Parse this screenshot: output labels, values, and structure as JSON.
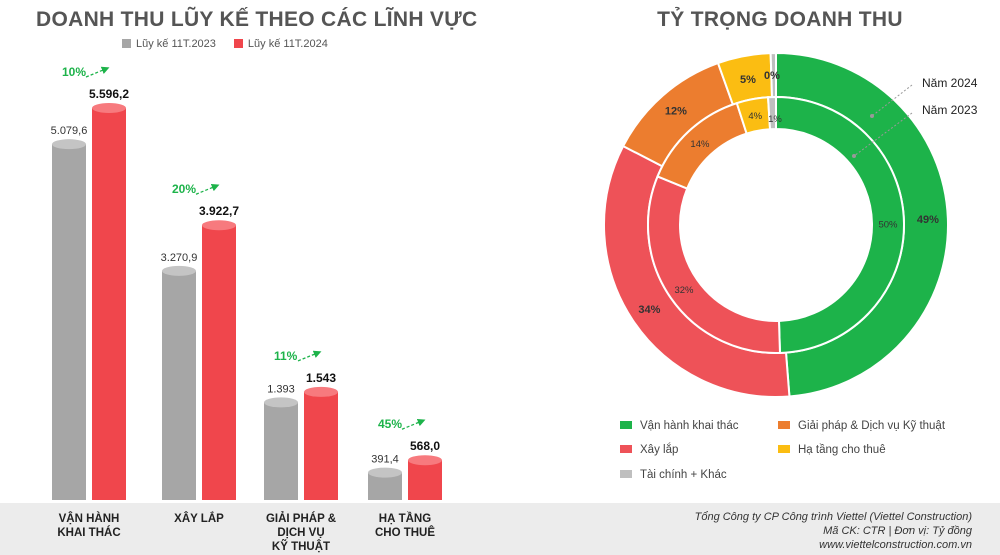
{
  "chart_data": [
    {
      "type": "bar",
      "title": "DOANH THU LŨY KẾ THEO CÁC LĨNH VỰC",
      "categories": [
        "VẬN HÀNH\nKHAI THÁC",
        "XÂY LẮP",
        "GIẢI PHÁP &\nDỊCH VỤ\nKỸ THUẬT",
        "HẠ TẦNG\nCHO THUÊ"
      ],
      "series": [
        {
          "name": "Lũy kế 11T.2023",
          "values": [
            5079.6,
            3270.9,
            1393,
            391.4
          ],
          "labels": [
            "5.079,6",
            "3.270,9",
            "1.393",
            "391,4"
          ],
          "color": "#a6a6a6"
        },
        {
          "name": "Lũy kế 11T.2024",
          "values": [
            5596.2,
            3922.7,
            1543,
            568.0
          ],
          "labels": [
            "5.596,2",
            "3.922,7",
            "1.543",
            "568,0"
          ],
          "color": "#f0464c"
        }
      ],
      "growth_labels": [
        "10%",
        "20%",
        "11%",
        "45%"
      ],
      "legend_position": "top"
    },
    {
      "type": "pie",
      "title": "TỶ TRỌNG DOANH THU",
      "categories": [
        "Vận hành khai thác",
        "Xây lắp",
        "Giải pháp & Dịch vụ Kỹ thuật",
        "Hạ tầng cho thuê",
        "Tài chính + Khác"
      ],
      "colors": [
        "#1db34a",
        "#ee5258",
        "#ec7d2f",
        "#fbbd12",
        "#bfbfbf"
      ],
      "series": [
        {
          "name": "Năm 2024",
          "values": [
            49,
            34,
            12,
            5,
            0
          ],
          "labels": [
            "49%",
            "34%",
            "12%",
            "5%",
            "0%"
          ]
        },
        {
          "name": "Năm 2023",
          "values": [
            50,
            32,
            14,
            4,
            1
          ],
          "labels": [
            "50%",
            "32%",
            "14%",
            "4%",
            "1%"
          ]
        }
      ],
      "legend_position": "bottom"
    }
  ],
  "footer": {
    "company": "Tổng Công ty CP Công trình Viettel (Viettel Construction)",
    "ticker": "Mã CK: CTR  |  Đơn vị: Tỷ đồng",
    "website": "www.viettelconstruction.com.vn"
  }
}
